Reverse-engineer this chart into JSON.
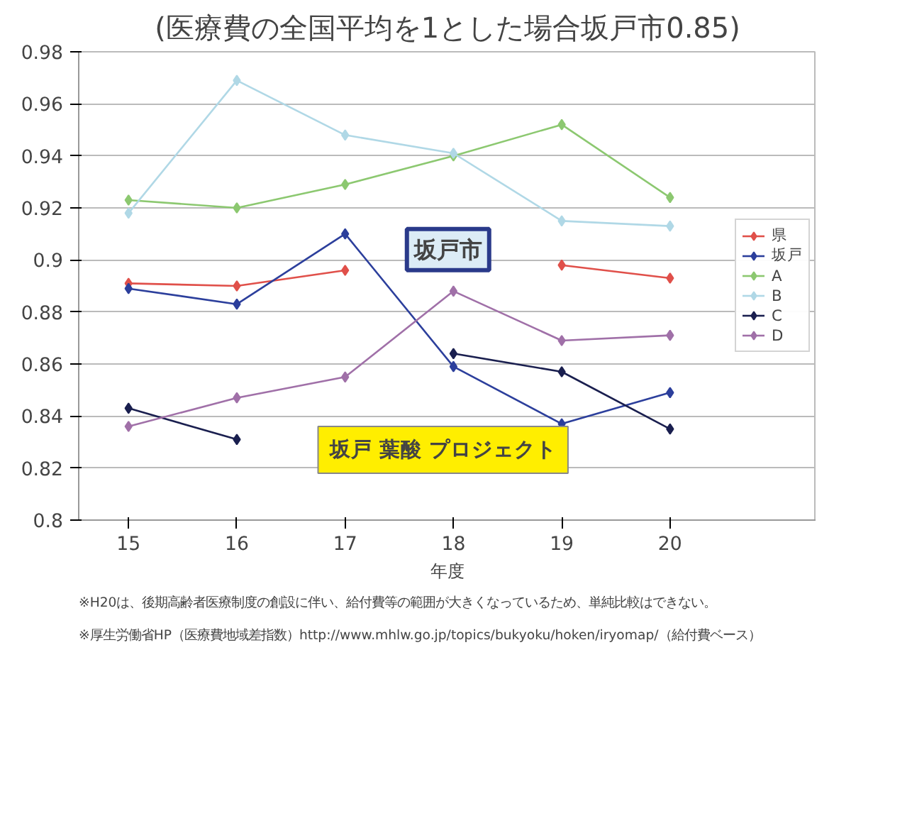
{
  "chart_data": {
    "type": "line",
    "title": "(医療費の全国平均を1とした場合坂戸市0.85)",
    "xlabel": "年度",
    "categories": [
      "15",
      "16",
      "17",
      "18",
      "19",
      "20"
    ],
    "series": [
      {
        "name": "県",
        "color": "#e0504a",
        "values": [
          0.891,
          0.89,
          0.896,
          null,
          0.898,
          0.893
        ]
      },
      {
        "name": "坂戸",
        "color": "#2c3f9c",
        "values": [
          0.889,
          0.883,
          0.91,
          0.859,
          0.837,
          0.849
        ]
      },
      {
        "name": "A",
        "color": "#8cc870",
        "values": [
          0.923,
          0.92,
          0.929,
          0.94,
          0.952,
          0.924
        ]
      },
      {
        "name": "B",
        "color": "#b0d8e6",
        "values": [
          0.918,
          0.969,
          0.948,
          0.941,
          0.915,
          0.913
        ]
      },
      {
        "name": "C",
        "color": "#1a1f4f",
        "values": [
          0.843,
          0.831,
          null,
          0.864,
          0.857,
          0.835
        ]
      },
      {
        "name": "D",
        "color": "#a070a8",
        "values": [
          0.836,
          0.847,
          0.855,
          0.888,
          0.869,
          0.871
        ]
      }
    ],
    "ylim": [
      0.8,
      0.98
    ],
    "yticks": [
      0.8,
      0.82,
      0.84,
      0.86,
      0.88,
      0.9,
      0.92,
      0.94,
      0.96,
      0.98
    ],
    "grid": "y",
    "legend": "right",
    "marker": "diamond",
    "line_style": "solid",
    "annotations": [
      "坂戸市",
      "坂戸 葉酸 プロジェクト",
      "※厚生労働省HP（医療費地域差指数）http://www.mhlw.go.jp/topics/bukyoku/hoken/iryomap/（給付費ベース）",
      "※H20は、後期高齢者医療制度の創設に伴い、給付費等の範囲が大きくなっているため、単純比較はできない。"
    ]
  }
}
